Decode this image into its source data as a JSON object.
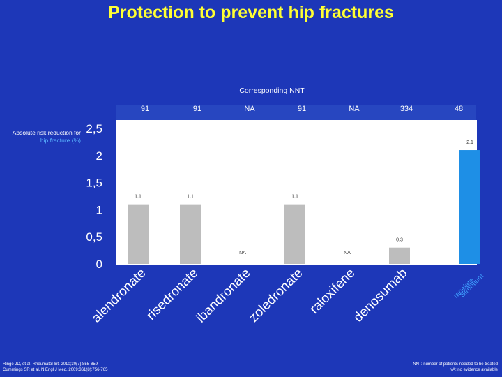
{
  "title": "Protection to prevent hip fractures",
  "nnt_heading": "Corresponding NNT",
  "y_caption_prefix": "Absolute risk reduction for ",
  "y_caption_highlight": "hip fracture (%)",
  "references": [
    "Ringe JD, et al. Rheumatol Int. 2010;30(7):855-859",
    "Cummings SR et al. N Engl J Med. 2009;361(8):756-765"
  ],
  "footnotes": [
    "NNT: number of patients needed to be treated",
    "NA: no evidence available"
  ],
  "colors": {
    "background": "#1d37b8",
    "title": "#ffff33",
    "bar_default": "#bdbdbd",
    "bar_highlight": "#1e8fe6",
    "label_highlight": "#3fa0ff",
    "nnt_band": "#2746c0"
  },
  "chart_data": {
    "type": "bar",
    "categories": [
      "alendronate",
      "risedronate",
      "ibandronate",
      "zoledronate",
      "raloxifene",
      "denosumab",
      "Strontium ranelate"
    ],
    "values": [
      1.1,
      1.1,
      null,
      1.1,
      null,
      0.3,
      2.1
    ],
    "data_labels": [
      "1.1",
      "1.1",
      "NA",
      "1.1",
      "NA",
      "0.3",
      "2.1"
    ],
    "nnt": [
      "91",
      "91",
      "NA",
      "91",
      "NA",
      "334",
      "48"
    ],
    "highlight_category": "Strontium ranelate",
    "yticks": [
      "0",
      "0,5",
      "1",
      "1,5",
      "2",
      "2,5"
    ],
    "ylim": [
      0,
      2.5
    ],
    "grid": false,
    "legend": "none"
  }
}
